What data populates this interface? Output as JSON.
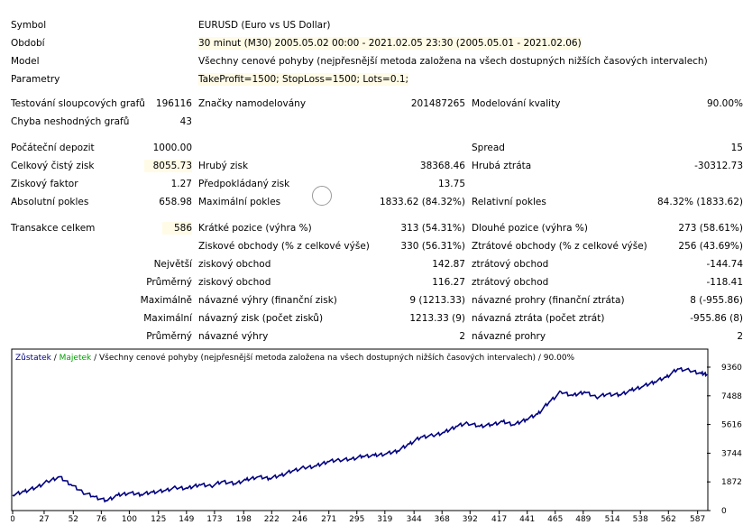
{
  "report": {
    "symbol_label": "Symbol",
    "symbol_value": "EURUSD (Euro vs US Dollar)",
    "period_label": "Období",
    "period_value": "30 minut (M30) 2005.05.02 00:00 - 2021.02.05 23:30 (2005.05.01 - 2021.02.06)",
    "model_label": "Model",
    "model_value": "Všechny cenové pohyby (nejpřesnější metoda založena na všech dostupných nižších časových intervalech)",
    "params_label": "Parametry",
    "params_value": "TakeProfit=1500; StopLoss=1500; Lots=0.1;",
    "bars_tested_label": "Testování sloupcových grafů",
    "bars_tested_value": "196116",
    "ticks_modelled_label": "Značky namodelovány",
    "ticks_modelled_value": "201487265",
    "modelling_quality_label": "Modelování kvality",
    "modelling_quality_value": "90.00%",
    "mismatched_label": "Chyba neshodných grafů",
    "mismatched_value": "43",
    "initial_deposit_label": "Počáteční depozit",
    "initial_deposit_value": "1000.00",
    "spread_label": "Spread",
    "spread_value": "15",
    "net_profit_label": "Celkový čistý zisk",
    "net_profit_value": "8055.73",
    "gross_profit_label": "Hrubý zisk",
    "gross_profit_value": "38368.46",
    "gross_loss_label": "Hrubá ztráta",
    "gross_loss_value": "-30312.73",
    "profit_factor_label": "Ziskový faktor",
    "profit_factor_value": "1.27",
    "expected_payoff_label": "Předpokládaný zisk",
    "expected_payoff_value": "13.75",
    "abs_drawdown_label": "Absolutní pokles",
    "abs_drawdown_value": "658.98",
    "max_drawdown_label": "Maximální pokles",
    "max_drawdown_value": "1833.62 (84.32%)",
    "rel_drawdown_label": "Relativní pokles",
    "rel_drawdown_value": "84.32% (1833.62)",
    "total_trades_label": "Transakce celkem",
    "total_trades_value": "586",
    "short_label": "Krátké pozice (výhra %)",
    "short_value": "313 (54.31%)",
    "long_label": "Dlouhé pozice (výhra %)",
    "long_value": "273 (58.61%)",
    "profit_trades_label": "Ziskové obchody (% z celkové výše)",
    "profit_trades_value": "330 (56.31%)",
    "loss_trades_label": "Ztrátové obchody (% z celkové výše)",
    "loss_trades_value": "256 (43.69%)",
    "largest_label": "Největší",
    "largest_profit_label": "ziskový obchod",
    "largest_profit_value": "142.87",
    "largest_loss_label": "ztrátový obchod",
    "largest_loss_value": "-144.74",
    "average_label": "Průměrný",
    "average_profit_label": "ziskový obchod",
    "average_profit_value": "116.27",
    "average_loss_label": "ztrátový obchod",
    "average_loss_value": "-118.41",
    "maxcons_label": "Maximálně",
    "maxcons_wins_label": "návazné výhry (finanční zisk)",
    "maxcons_wins_value": "9 (1213.33)",
    "maxcons_losses_label": "návazné prohry (finanční ztráta)",
    "maxcons_losses_value": "8 (-955.86)",
    "maximal_label": "Maximální",
    "maximal_profit_label": "návazný zisk (počet zisků)",
    "maximal_profit_value": "1213.33 (9)",
    "maximal_loss_label": "návazná ztráta (počet ztrát)",
    "maximal_loss_value": "-955.86 (8)",
    "avg_cons_label": "Průměrný",
    "avg_cons_wins_label": "návazné výhry",
    "avg_cons_wins_value": "2",
    "avg_cons_losses_label": "návazné prohry",
    "avg_cons_losses_value": "2"
  },
  "colors": {
    "highlight": "#fffbe6",
    "balance_line": "#000080",
    "equity_label": "#00a000",
    "balance_label": "#000080",
    "axis": "#000000"
  },
  "chart_data": {
    "type": "line",
    "legend": {
      "balance": "Zůstatek",
      "sep1": " / ",
      "equity": "Majetek",
      "rest": " / Všechny cenové pohyby (nejpřesnější metoda založena na všech dostupných nižších časových intervalech) / 90.00%"
    },
    "x_ticks": [
      "0",
      "27",
      "52",
      "76",
      "100",
      "125",
      "149",
      "173",
      "198",
      "222",
      "246",
      "271",
      "295",
      "319",
      "344",
      "368",
      "392",
      "417",
      "441",
      "465",
      "489",
      "514",
      "538",
      "562",
      "587"
    ],
    "y_ticks": [
      "9360",
      "7488",
      "5616",
      "3744",
      "1872",
      "0"
    ],
    "xlim": [
      0,
      595
    ],
    "ylim": [
      0,
      9360
    ],
    "series": [
      {
        "name": "Zůstatek",
        "x": [
          0,
          10,
          20,
          30,
          40,
          50,
          60,
          70,
          80,
          90,
          100,
          110,
          120,
          130,
          140,
          150,
          160,
          170,
          180,
          190,
          200,
          210,
          220,
          230,
          240,
          250,
          260,
          270,
          280,
          290,
          300,
          310,
          320,
          330,
          340,
          350,
          360,
          370,
          380,
          390,
          400,
          410,
          420,
          430,
          440,
          450,
          460,
          470,
          480,
          490,
          500,
          510,
          520,
          530,
          540,
          550,
          560,
          570,
          580,
          590,
          595
        ],
        "y": [
          1000,
          1250,
          1500,
          1900,
          2200,
          1700,
          1200,
          900,
          650,
          1000,
          1150,
          1050,
          1200,
          1300,
          1500,
          1450,
          1700,
          1600,
          1900,
          1750,
          2000,
          2200,
          2100,
          2300,
          2600,
          2800,
          2900,
          3200,
          3300,
          3350,
          3550,
          3600,
          3700,
          3900,
          4350,
          4800,
          4900,
          5100,
          5500,
          5700,
          5500,
          5600,
          5800,
          5600,
          5950,
          6300,
          7100,
          7750,
          7500,
          7750,
          7400,
          7600,
          7550,
          7850,
          8100,
          8400,
          8700,
          9250,
          9150,
          8950,
          8900
        ]
      }
    ]
  }
}
